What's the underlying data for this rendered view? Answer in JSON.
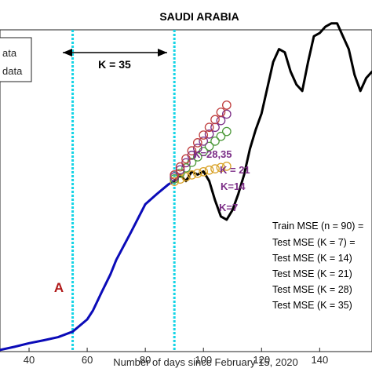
{
  "chart_data": {
    "type": "line",
    "title": "SAUDI ARABIA",
    "xlabel": "Number of days since February 15, 2020",
    "ylabel": "",
    "xlim": [
      30,
      158
    ],
    "ylim": [
      0,
      100
    ],
    "grid": false,
    "x_ticks": [
      "40",
      "60",
      "80",
      "100",
      "120",
      "140"
    ],
    "legend": {
      "position": "top-left",
      "entries": [
        "ata",
        "data"
      ],
      "colors": [
        "#0b0bb8",
        "#000000"
      ]
    },
    "series": [
      {
        "color": "#0b0bb8",
        "x": [
          30,
          35,
          40,
          45,
          50,
          55,
          60,
          62,
          65,
          68,
          70,
          75,
          80,
          84,
          86,
          88,
          90
        ],
        "y": [
          0.5,
          1.5,
          2.6,
          3.5,
          4.5,
          6.2,
          10,
          12.8,
          18.5,
          24,
          28.5,
          37,
          45.8,
          49,
          50.5,
          52,
          53
        ]
      },
      {
        "color": "#000000",
        "x": [
          90,
          92,
          94,
          96,
          98,
          100,
          102,
          104,
          106,
          108,
          110,
          112,
          114,
          116,
          118,
          120,
          122,
          124,
          126,
          128,
          130,
          132,
          134,
          136,
          138,
          140,
          142,
          144,
          146,
          148,
          150,
          152,
          154,
          156,
          158
        ],
        "y": [
          53,
          55,
          53,
          56,
          55,
          56,
          53,
          47,
          42,
          41,
          44,
          49,
          55,
          63,
          69,
          74,
          82,
          90,
          94,
          93,
          87,
          83,
          81,
          90,
          98,
          99,
          101,
          102,
          102,
          98,
          94,
          86,
          81,
          85,
          87
        ]
      }
    ],
    "forecast_markers": [
      {
        "label": "K=7",
        "color": "#d9a32a",
        "x": [
          90,
          92,
          94,
          96,
          98,
          100,
          102,
          104,
          106,
          108
        ],
        "y": [
          52.9,
          53.6,
          54.3,
          54.9,
          55.4,
          55.9,
          56.4,
          56.8,
          57.2,
          57.6
        ]
      },
      {
        "label": "K=14",
        "color": "#4f9a3c",
        "x": [
          90,
          92,
          94,
          96,
          98,
          100,
          102,
          104,
          106,
          108
        ],
        "y": [
          53.7,
          55.4,
          57.1,
          58.8,
          60.5,
          62.2,
          63.8,
          65.4,
          66.9,
          68.4
        ]
      },
      {
        "label": "K = 21",
        "color": "#7b2d86",
        "x": [
          90,
          92,
          94,
          96,
          98,
          100,
          102,
          104,
          106,
          108
        ],
        "y": [
          54.3,
          56.5,
          58.7,
          61,
          63.2,
          65.4,
          67.6,
          69.7,
          71.8,
          73.8
        ]
      },
      {
        "label": "K=28,35",
        "color": "#c04040",
        "x": [
          90,
          92,
          94,
          96,
          98,
          100,
          102,
          104,
          106,
          108
        ],
        "y": [
          54.9,
          57.4,
          59.9,
          62.4,
          64.9,
          67.3,
          69.7,
          72.1,
          74.4,
          76.6
        ]
      }
    ],
    "vertical_lines": [
      {
        "x": 55
      },
      {
        "x": 90
      }
    ],
    "annotations": {
      "window_label": "K = 35",
      "marker_letter": "A",
      "mse_labels": [
        "Train MSE (n = 90) =",
        "Test MSE (K = 7) =",
        "Test MSE (K = 14)",
        "Test MSE (K = 21)",
        "Test MSE (K = 28)",
        "Test MSE (K = 35)"
      ]
    }
  }
}
